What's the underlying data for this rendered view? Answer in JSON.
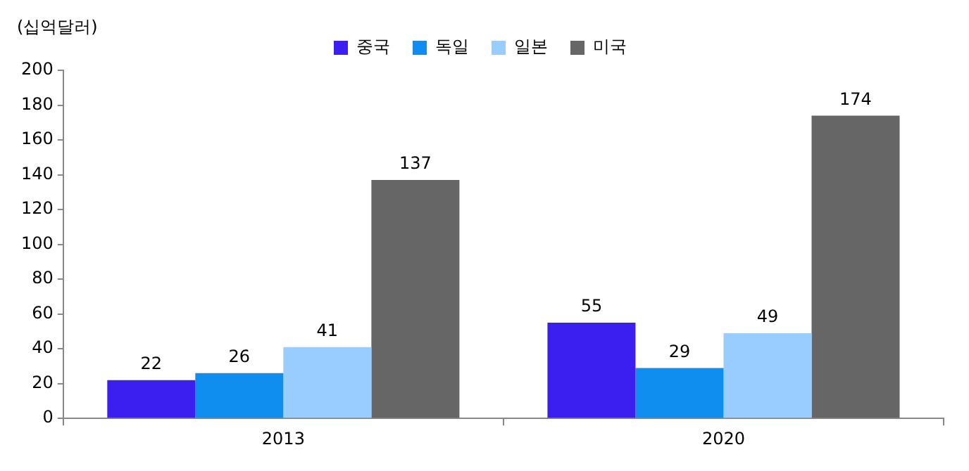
{
  "chart_data": {
    "type": "bar",
    "ylabel": "(십억달러)",
    "categories": [
      "2013",
      "2020"
    ],
    "series": [
      {
        "name": "중국",
        "color": "#3b1ff0",
        "values": [
          22,
          55
        ]
      },
      {
        "name": "독일",
        "color": "#0f8ef0",
        "values": [
          26,
          29
        ]
      },
      {
        "name": "일본",
        "color": "#99ccff",
        "values": [
          41,
          49
        ]
      },
      {
        "name": "미국",
        "color": "#666666",
        "values": [
          137,
          174
        ]
      }
    ],
    "ylim": [
      0,
      200
    ],
    "yticks": [
      0,
      20,
      40,
      60,
      80,
      100,
      120,
      140,
      160,
      180,
      200
    ],
    "data_labels": true,
    "legend": "top",
    "grid": false
  }
}
